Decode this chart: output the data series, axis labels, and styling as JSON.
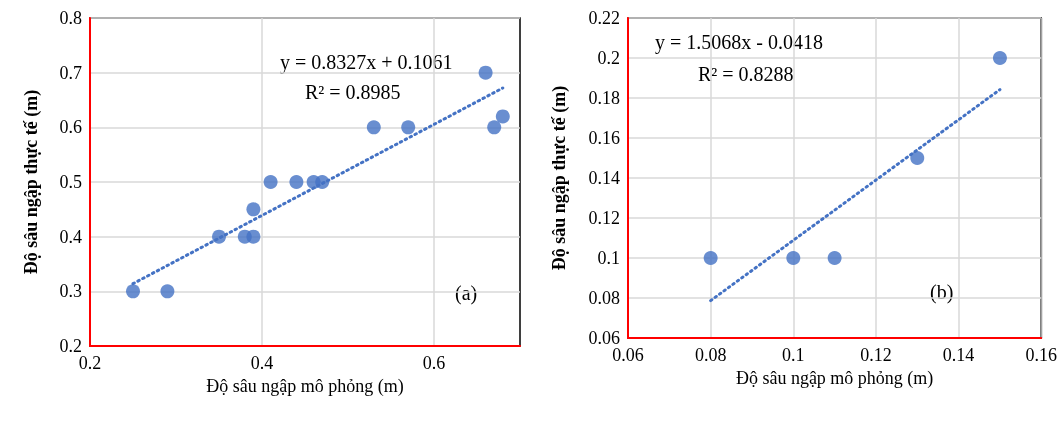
{
  "chart_data": [
    {
      "type": "scatter",
      "xlabel": "Độ sâu ngập mô phỏng (m)",
      "ylabel": "Độ sâu ngập thực tế (m)",
      "xlim": [
        0.2,
        0.7
      ],
      "xticks": [
        0.2,
        0.4,
        0.6
      ],
      "ylim": [
        0.2,
        0.8
      ],
      "yticks": [
        0.2,
        0.3,
        0.4,
        0.5,
        0.6,
        0.7,
        0.8
      ],
      "grid": true,
      "annotations": [
        "y = 0.8327x + 0.1061",
        "R² = 0.8985",
        "(a)"
      ],
      "series": [
        {
          "marker": "circle",
          "color": "#4472c4",
          "x": [
            0.25,
            0.29,
            0.35,
            0.38,
            0.39,
            0.39,
            0.41,
            0.44,
            0.46,
            0.47,
            0.53,
            0.57,
            0.66,
            0.67,
            0.68
          ],
          "values": [
            0.3,
            0.3,
            0.4,
            0.4,
            0.4,
            0.45,
            0.5,
            0.5,
            0.5,
            0.5,
            0.6,
            0.6,
            0.7,
            0.6,
            0.62
          ]
        },
        {
          "type": "line",
          "marker": "none",
          "line_style": "dotted",
          "color": "#4472c4",
          "x": [
            0.25,
            0.68
          ],
          "values": [
            0.314,
            0.672
          ]
        }
      ]
    },
    {
      "type": "scatter",
      "xlabel": "Độ sâu ngập mô phỏng (m)",
      "ylabel": "Độ sâu ngập thực tế (m)",
      "xlim": [
        0.06,
        0.16
      ],
      "xticks": [
        0.06,
        0.08,
        0.1,
        0.12,
        0.14,
        0.16
      ],
      "ylim": [
        0.06,
        0.22
      ],
      "yticks": [
        0.06,
        0.08,
        0.1,
        0.12,
        0.14,
        0.16,
        0.18,
        0.2,
        0.22
      ],
      "grid": true,
      "annotations": [
        "y = 1.5068x - 0.0418",
        "R² = 0.8288",
        "(b)"
      ],
      "series": [
        {
          "marker": "circle",
          "color": "#4472c4",
          "x": [
            0.08,
            0.1,
            0.11,
            0.13,
            0.15
          ],
          "values": [
            0.1,
            0.1,
            0.1,
            0.15,
            0.2
          ]
        },
        {
          "type": "line",
          "marker": "none",
          "line_style": "dotted",
          "color": "#4472c4",
          "x": [
            0.08,
            0.15
          ],
          "values": [
            0.0787,
            0.1842
          ]
        }
      ]
    }
  ]
}
